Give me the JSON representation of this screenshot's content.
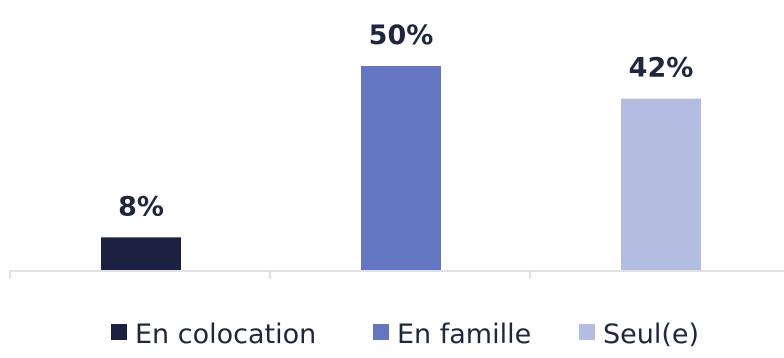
{
  "chart_data": {
    "type": "bar",
    "categories": [
      "En colocation",
      "En famille",
      "Seul(e)"
    ],
    "values": [
      8,
      50,
      42
    ],
    "data_labels": [
      "8%",
      "50%",
      "42%"
    ],
    "colors": [
      "#1b2140",
      "#6476c2",
      "#b3bde2"
    ],
    "ylim": [
      0,
      60
    ],
    "grid": false,
    "legend": {
      "position": "bottom",
      "entries": [
        "En colocation",
        "En famille",
        "Seul(e)"
      ]
    },
    "title": "",
    "xlabel": "",
    "ylabel": ""
  }
}
